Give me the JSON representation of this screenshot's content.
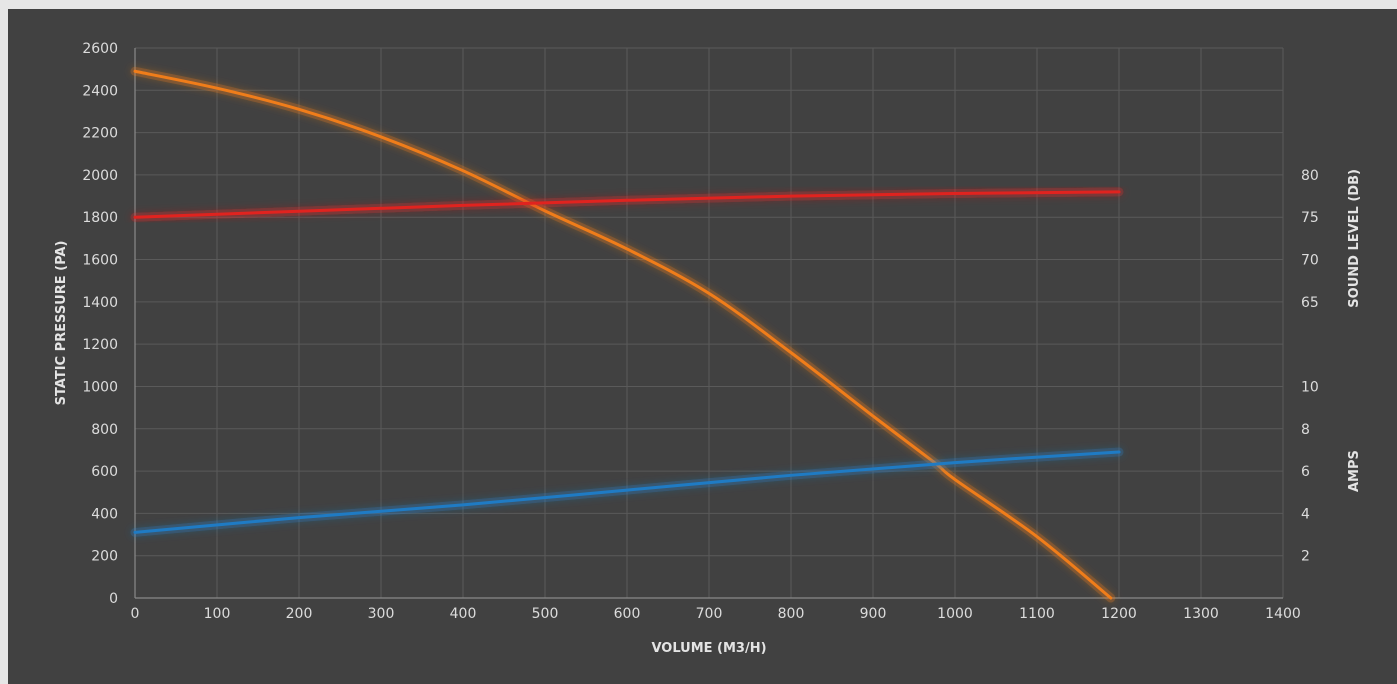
{
  "chart_data": {
    "type": "line",
    "xlabel": "VOLUME (M3/H)",
    "ylabel": "STATIC PRESSURE (PA)",
    "y2_sound_label": "SOUND LEVEL (DB)",
    "y2_amps_label": "AMPS",
    "xlim": [
      0,
      1400
    ],
    "ylim": [
      0,
      2600
    ],
    "x_ticks": [
      "0",
      "100",
      "200",
      "300",
      "400",
      "500",
      "600",
      "700",
      "800",
      "900",
      "1000",
      "1100",
      "1200",
      "1300",
      "1400"
    ],
    "y_ticks": [
      "0",
      "200",
      "400",
      "600",
      "800",
      "1000",
      "1200",
      "1400",
      "1600",
      "1800",
      "2000",
      "2200",
      "2400",
      "2600"
    ],
    "sound_ticks": [
      {
        "label": "80",
        "value": 80
      },
      {
        "label": "75",
        "value": 75
      },
      {
        "label": "70",
        "value": 70
      },
      {
        "label": "65",
        "value": 65
      }
    ],
    "sound_scale": {
      "ref_low": 65,
      "ref_low_pressure": 1400,
      "ref_high": 80,
      "ref_high_pressure": 2000
    },
    "amps_ticks": [
      {
        "label": "10",
        "value": 10
      },
      {
        "label": "8",
        "value": 8
      },
      {
        "label": "6",
        "value": 6
      },
      {
        "label": "4",
        "value": 4
      },
      {
        "label": "2",
        "value": 2
      }
    ],
    "amps_scale": {
      "ref_low": 2,
      "ref_low_pressure": 200,
      "ref_high": 6,
      "ref_high_pressure": 600
    },
    "grid": true,
    "series": [
      {
        "axis": "pressure",
        "color": "#f07d1a",
        "x": [
          0,
          100,
          200,
          300,
          400,
          500,
          600,
          700,
          800,
          900,
          975,
          1000,
          1100,
          1190
        ],
        "values": [
          2490,
          2410,
          2310,
          2180,
          2020,
          1830,
          1650,
          1440,
          1160,
          860,
          640,
          560,
          290,
          0
        ]
      },
      {
        "axis": "sound",
        "color": "#e0231f",
        "x": [
          0,
          200,
          400,
          600,
          800,
          1000,
          1200
        ],
        "values": [
          75,
          75.7,
          76.4,
          77,
          77.5,
          77.8,
          78
        ]
      },
      {
        "axis": "amps",
        "color": "#1f7bc4",
        "x": [
          0,
          200,
          400,
          600,
          800,
          1000,
          1200
        ],
        "values": [
          3.1,
          3.8,
          4.4,
          5.1,
          5.8,
          6.4,
          6.9
        ]
      }
    ]
  }
}
